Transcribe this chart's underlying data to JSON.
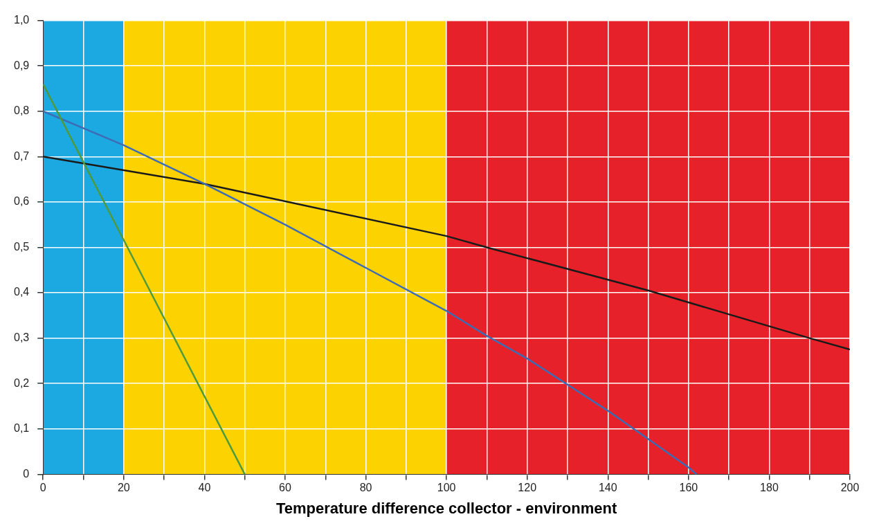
{
  "chart_data": {
    "type": "line",
    "xlabel": "Temperature difference collector - environment",
    "xlim": [
      0,
      200
    ],
    "xticks": [
      0,
      {
        "value": 10,
        "label": null
      },
      20,
      {
        "value": 30,
        "label": null
      },
      40,
      {
        "value": 50,
        "label": null
      },
      60,
      {
        "value": 70,
        "label": null
      },
      80,
      {
        "value": 90,
        "label": null
      },
      100,
      {
        "value": 110,
        "label": null
      },
      120,
      {
        "value": 130,
        "label": null
      },
      140,
      {
        "value": 150,
        "label": null
      },
      160,
      {
        "value": 170,
        "label": null
      },
      180,
      {
        "value": 190,
        "label": null
      },
      200
    ],
    "ylim": [
      0,
      1
    ],
    "yticks": [
      0,
      {
        "value": 0.1,
        "label": "0,1"
      },
      {
        "value": 0.2,
        "label": "0,2"
      },
      {
        "value": 0.3,
        "label": "0,3"
      },
      {
        "value": 0.4,
        "label": "0,4"
      },
      {
        "value": 0.5,
        "label": "0,5"
      },
      {
        "value": 0.6,
        "label": "0,6"
      },
      {
        "value": 0.7,
        "label": "0,7"
      },
      {
        "value": 0.8,
        "label": "0,8"
      },
      {
        "value": 0.9,
        "label": "0,9"
      },
      {
        "value": 1,
        "label": "1,0"
      }
    ],
    "grid": true,
    "legend": false,
    "marker": "none",
    "line_style": "solid",
    "bands": [
      {
        "axis": "x",
        "from": 0,
        "to": 20,
        "color": "#1ca8e0"
      },
      {
        "axis": "x",
        "from": 20,
        "to": 100,
        "color": "#fcd200"
      },
      {
        "axis": "x",
        "from": 100,
        "to": 200,
        "color": "#e62129"
      }
    ],
    "series": [
      {
        "color": "#4f9a3c",
        "x": [
          0,
          50
        ],
        "values": [
          0.86,
          0
        ]
      },
      {
        "color": "#3d6cb5",
        "x": [
          0,
          20,
          40,
          60,
          80,
          100,
          110,
          120,
          140,
          160,
          162
        ],
        "values": [
          0.8,
          0.725,
          0.64,
          0.55,
          0.455,
          0.36,
          0.305,
          0.255,
          0.14,
          0.015,
          0
        ]
      },
      {
        "color": "#1a1a1a",
        "x": [
          0,
          40,
          100,
          110,
          150,
          190,
          200
        ],
        "values": [
          0.7,
          0.64,
          0.525,
          0.5,
          0.405,
          0.3,
          0.275
        ]
      }
    ]
  }
}
